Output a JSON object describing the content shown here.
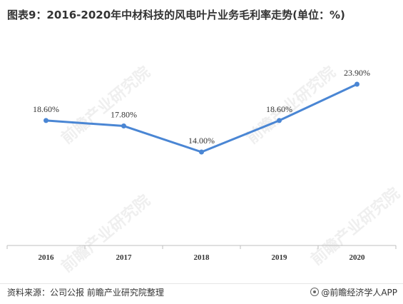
{
  "title": "图表9：2016-2020年中材科技的风电叶片业务毛利率走势(单位：%)",
  "source": "资料来源：公司公报 前瞻产业研究院整理",
  "brand": "@前瞻经济学人APP",
  "watermark": "前瞻产业研究院",
  "colors": {
    "line": "#4a86d4",
    "axis": "#bfbfbf",
    "text": "#333333"
  },
  "chart_data": {
    "type": "line",
    "categories": [
      "2016",
      "2017",
      "2018",
      "2019",
      "2020"
    ],
    "values": [
      18.6,
      17.8,
      14.0,
      18.6,
      23.9
    ],
    "data_labels": [
      "18.60%",
      "17.80%",
      "14.00%",
      "18.60%",
      "23.90%"
    ],
    "title": "",
    "xlabel": "",
    "ylabel": "",
    "grid": false,
    "y_axis_visible": false
  }
}
